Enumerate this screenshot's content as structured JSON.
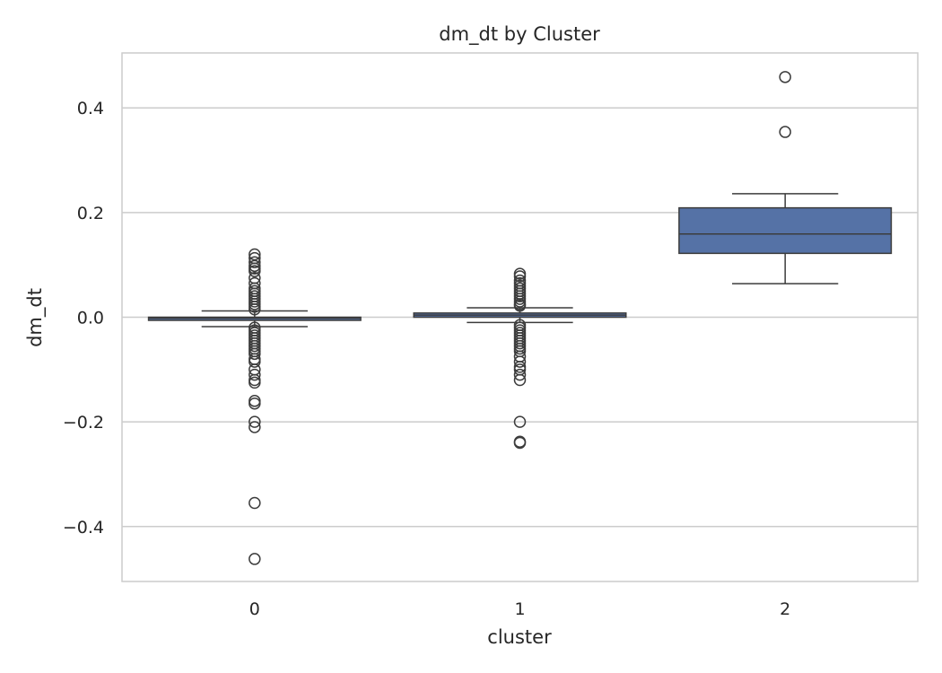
{
  "chart_data": {
    "type": "box",
    "title": "dm_dt by Cluster",
    "xlabel": "cluster",
    "ylabel": "dm_dt",
    "categories": [
      "0",
      "1",
      "2"
    ],
    "ylim": [
      -0.505,
      0.505
    ],
    "yticks": [
      0.4,
      0.2,
      0.0,
      -0.2,
      -0.4
    ],
    "ytick_labels": [
      "0.4",
      "0.2",
      "0.0",
      "−0.2",
      "−0.4"
    ],
    "grid": true,
    "box_color": "#5572a6",
    "line_color": "#3c3c3c",
    "grid_color": "#cccccc",
    "boxes": [
      {
        "category": "0",
        "q1": -0.006,
        "median": -0.002,
        "q3": 0.0,
        "whisker_low": -0.018,
        "whisker_high": 0.012,
        "outliers": [
          0.12,
          0.113,
          0.105,
          0.098,
          0.093,
          0.088,
          0.075,
          0.065,
          0.055,
          0.05,
          0.045,
          0.04,
          0.035,
          0.03,
          0.025,
          0.02,
          0.015,
          -0.02,
          -0.025,
          -0.03,
          -0.035,
          -0.04,
          -0.045,
          -0.05,
          -0.055,
          -0.06,
          -0.065,
          -0.07,
          -0.08,
          -0.085,
          -0.1,
          -0.11,
          -0.12,
          -0.125,
          -0.16,
          -0.165,
          -0.2,
          -0.21,
          -0.355,
          -0.462
        ]
      },
      {
        "category": "1",
        "q1": 0.0,
        "median": 0.004,
        "q3": 0.008,
        "whisker_low": -0.01,
        "whisker_high": 0.018,
        "outliers": [
          0.083,
          0.078,
          0.07,
          0.065,
          0.06,
          0.055,
          0.05,
          0.045,
          0.04,
          0.035,
          0.03,
          0.025,
          0.022,
          -0.015,
          -0.02,
          -0.025,
          -0.03,
          -0.035,
          -0.04,
          -0.045,
          -0.05,
          -0.055,
          -0.06,
          -0.065,
          -0.075,
          -0.085,
          -0.095,
          -0.1,
          -0.11,
          -0.12,
          -0.2,
          -0.238,
          -0.24
        ]
      },
      {
        "category": "2",
        "q1": 0.122,
        "median": 0.159,
        "q3": 0.209,
        "whisker_low": 0.064,
        "whisker_high": 0.236,
        "outliers": [
          0.459,
          0.354
        ]
      }
    ]
  }
}
